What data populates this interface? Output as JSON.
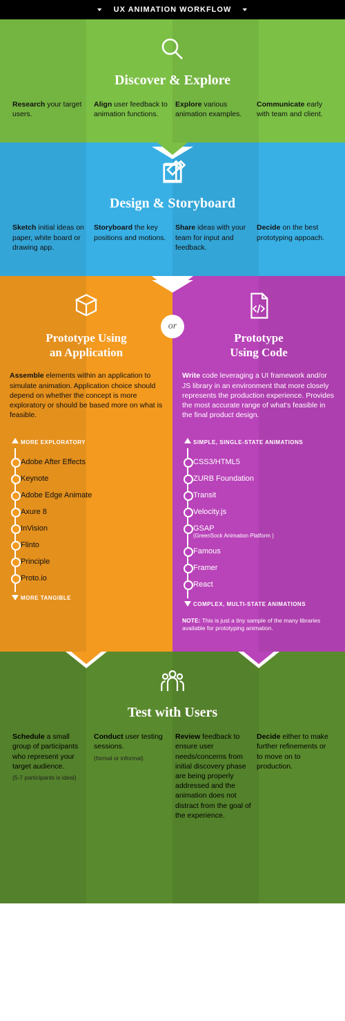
{
  "header": {
    "title": "UX ANIMATION WORKFLOW"
  },
  "colors": {
    "discover": "#7cc046",
    "design": "#38b0e5",
    "proto_app": "#f39a1f",
    "proto_code": "#b943b9",
    "test": "#5a8a2e",
    "headerbar": "#000000",
    "text_dark": "#111111",
    "text_light": "#ffffff"
  },
  "stages": {
    "discover": {
      "title": "Discover & Explore",
      "items": [
        {
          "b": "Research",
          "t": " your target users."
        },
        {
          "b": "Align",
          "t": " user feedback to animation functions."
        },
        {
          "b": "Explore",
          "t": " various animation examples."
        },
        {
          "b": "Communicate",
          "t": " early with team and client."
        }
      ]
    },
    "design": {
      "title": "Design & Storyboard",
      "items": [
        {
          "b": "Sketch",
          "t": " initial ideas on paper, white board or drawing app."
        },
        {
          "b": "Storyboard",
          "t": " the key positions and motions."
        },
        {
          "b": "Share",
          "t": " ideas with your team for input and feedback."
        },
        {
          "b": "Decide",
          "t": " on the best prototyping appoach."
        }
      ]
    },
    "test": {
      "title": "Test with Users",
      "items": [
        {
          "b": "Schedule",
          "t": " a small group of participants who represent your target audience.",
          "sub": "(5-7 participants is ideal)"
        },
        {
          "b": "Conduct",
          "t": " user testing sessions.",
          "sub": "(formal or informal)"
        },
        {
          "b": "Review",
          "t": " feedback to ensure user needs/concerns from initial discovery phase are being properly addressed and the animation does not distract from the goal of the experience."
        },
        {
          "b": "Decide",
          "t": " either to make further refinements or to move on to production."
        }
      ]
    }
  },
  "or_label": "or",
  "proto": {
    "app": {
      "title_l1": "Prototype Using",
      "title_l2": "an Application",
      "desc_b": "Assemble",
      "desc": " elements within an application to simulate animation. Application choice should depend on whether the concept is more exploratory or should be based more on what is feasible.",
      "top_label": "MORE EXPLORATORY",
      "bottom_label": "MORE TANGIBLE",
      "items": [
        {
          "n": "Adobe After Effects"
        },
        {
          "n": "Keynote"
        },
        {
          "n": "Adobe Edge Animate"
        },
        {
          "n": "Axure 8"
        },
        {
          "n": "InVision"
        },
        {
          "n": "Flinto"
        },
        {
          "n": "Principle"
        },
        {
          "n": "Proto.io"
        }
      ]
    },
    "code": {
      "title_l1": "Prototype",
      "title_l2": "Using Code",
      "desc_b": "Write",
      "desc": " code leveraging a UI framework and/or JS library in an environment that more closely represents the production experience. Provides the most accurate range of what's feasible in the final product design.",
      "top_label": "SIMPLE, SINGLE-STATE ANIMATIONS",
      "bottom_label": "COMPLEX, MULTI-STATE ANIMATIONS",
      "items": [
        {
          "n": "CSS3/HTML5"
        },
        {
          "n": "ZURB Foundation"
        },
        {
          "n": "Transit"
        },
        {
          "n": "Velocity.js"
        },
        {
          "n": "GSAP",
          "s": "(GreenSock Animation Platform )"
        },
        {
          "n": "Famous"
        },
        {
          "n": "Framer"
        },
        {
          "n": "React"
        }
      ],
      "note_b": "NOTE:",
      "note": " This is just a tiny sample of the many libraries available for prototyping animation."
    }
  }
}
